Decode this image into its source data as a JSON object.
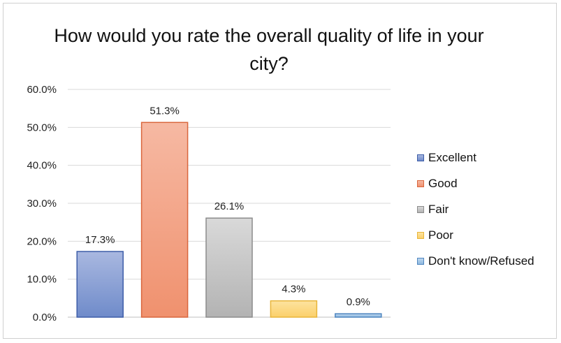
{
  "chart_data": {
    "type": "bar",
    "title": "How would you rate the overall quality of life in your city?",
    "categories": [
      "Excellent",
      "Good",
      "Fair",
      "Poor",
      "Don't know/Refused"
    ],
    "values": [
      17.3,
      51.3,
      26.1,
      4.3,
      0.9
    ],
    "value_labels": [
      "17.3%",
      "51.3%",
      "26.1%",
      "4.3%",
      "0.9%"
    ],
    "ylim": [
      0,
      60
    ],
    "yticks": [
      0,
      10,
      20,
      30,
      40,
      50,
      60
    ],
    "ytick_labels": [
      "0.0%",
      "10.0%",
      "20.0%",
      "30.0%",
      "40.0%",
      "50.0%",
      "60.0%"
    ],
    "grid": true,
    "legend_position": "right",
    "colors": [
      {
        "top": "#a9b8e0",
        "bottom": "#6f8bca",
        "stroke": "#3d5da8"
      },
      {
        "top": "#f6b9a3",
        "bottom": "#f0916e",
        "stroke": "#d9663d"
      },
      {
        "top": "#d9d9d9",
        "bottom": "#b3b3b3",
        "stroke": "#8c8c8c"
      },
      {
        "top": "#fde3a0",
        "bottom": "#fbd06a",
        "stroke": "#e8b53a"
      },
      {
        "top": "#bcd6ee",
        "bottom": "#8fb9e0",
        "stroke": "#4f86c0"
      }
    ]
  }
}
